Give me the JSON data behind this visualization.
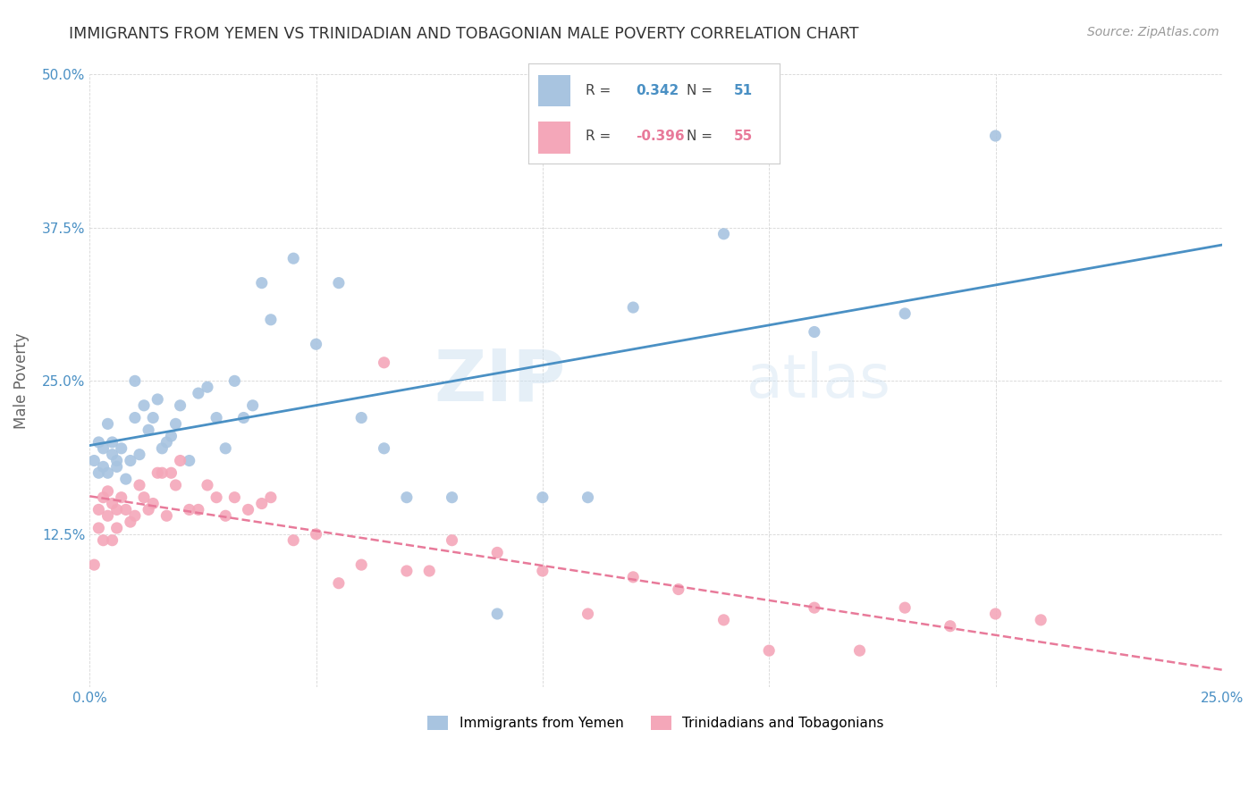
{
  "title": "IMMIGRANTS FROM YEMEN VS TRINIDADIAN AND TOBAGONIAN MALE POVERTY CORRELATION CHART",
  "source": "Source: ZipAtlas.com",
  "ylabel": "Male Poverty",
  "x_min": 0.0,
  "x_max": 0.25,
  "y_min": 0.0,
  "y_max": 0.5,
  "blue_color": "#a8c4e0",
  "pink_color": "#f4a7b9",
  "blue_line_color": "#4a90c4",
  "pink_line_color": "#e87a9a",
  "legend_R_blue": "0.342",
  "legend_N_blue": "51",
  "legend_R_pink": "-0.396",
  "legend_N_pink": "55",
  "legend_blue_label": "Immigrants from Yemen",
  "legend_pink_label": "Trinidadians and Tobagonians",
  "watermark_1": "ZIP",
  "watermark_2": "atlas",
  "background_color": "#ffffff",
  "tick_color": "#4a90c4",
  "label_color": "#666666",
  "grid_color": "#cccccc",
  "blue_scatter_x": [
    0.001,
    0.002,
    0.002,
    0.003,
    0.003,
    0.004,
    0.004,
    0.005,
    0.005,
    0.006,
    0.006,
    0.007,
    0.008,
    0.009,
    0.01,
    0.01,
    0.011,
    0.012,
    0.013,
    0.014,
    0.015,
    0.016,
    0.017,
    0.018,
    0.019,
    0.02,
    0.022,
    0.024,
    0.026,
    0.028,
    0.03,
    0.032,
    0.034,
    0.036,
    0.038,
    0.04,
    0.045,
    0.05,
    0.055,
    0.06,
    0.065,
    0.07,
    0.08,
    0.09,
    0.1,
    0.11,
    0.12,
    0.14,
    0.16,
    0.18,
    0.2
  ],
  "blue_scatter_y": [
    0.185,
    0.2,
    0.175,
    0.195,
    0.18,
    0.215,
    0.175,
    0.19,
    0.2,
    0.185,
    0.18,
    0.195,
    0.17,
    0.185,
    0.25,
    0.22,
    0.19,
    0.23,
    0.21,
    0.22,
    0.235,
    0.195,
    0.2,
    0.205,
    0.215,
    0.23,
    0.185,
    0.24,
    0.245,
    0.22,
    0.195,
    0.25,
    0.22,
    0.23,
    0.33,
    0.3,
    0.35,
    0.28,
    0.33,
    0.22,
    0.195,
    0.155,
    0.155,
    0.06,
    0.155,
    0.155,
    0.31,
    0.37,
    0.29,
    0.305,
    0.45
  ],
  "pink_scatter_x": [
    0.001,
    0.002,
    0.002,
    0.003,
    0.003,
    0.004,
    0.004,
    0.005,
    0.005,
    0.006,
    0.006,
    0.007,
    0.008,
    0.009,
    0.01,
    0.011,
    0.012,
    0.013,
    0.014,
    0.015,
    0.016,
    0.017,
    0.018,
    0.019,
    0.02,
    0.022,
    0.024,
    0.026,
    0.028,
    0.03,
    0.032,
    0.035,
    0.038,
    0.04,
    0.045,
    0.05,
    0.055,
    0.06,
    0.065,
    0.07,
    0.075,
    0.08,
    0.09,
    0.1,
    0.11,
    0.12,
    0.13,
    0.14,
    0.15,
    0.16,
    0.17,
    0.18,
    0.19,
    0.2,
    0.21
  ],
  "pink_scatter_y": [
    0.1,
    0.145,
    0.13,
    0.155,
    0.12,
    0.16,
    0.14,
    0.15,
    0.12,
    0.145,
    0.13,
    0.155,
    0.145,
    0.135,
    0.14,
    0.165,
    0.155,
    0.145,
    0.15,
    0.175,
    0.175,
    0.14,
    0.175,
    0.165,
    0.185,
    0.145,
    0.145,
    0.165,
    0.155,
    0.14,
    0.155,
    0.145,
    0.15,
    0.155,
    0.12,
    0.125,
    0.085,
    0.1,
    0.265,
    0.095,
    0.095,
    0.12,
    0.11,
    0.095,
    0.06,
    0.09,
    0.08,
    0.055,
    0.03,
    0.065,
    0.03,
    0.065,
    0.05,
    0.06,
    0.055
  ]
}
